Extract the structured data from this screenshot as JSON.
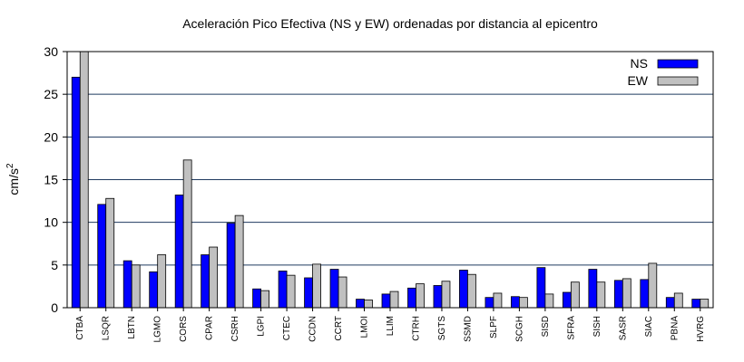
{
  "chart_data": {
    "type": "bar",
    "title": "Aceleración Pico Efectiva (NS y EW) ordenadas por distancia al epicentro",
    "xlabel": "",
    "ylabel": "cm/s",
    "ylabel_superscript": "2",
    "ylim": [
      0,
      30
    ],
    "yticks": [
      "0",
      "5",
      "10",
      "15",
      "20",
      "25",
      "30"
    ],
    "grid": "horizontal",
    "legend_position": "top-right",
    "categories": [
      "CTBA",
      "LSQR",
      "LBTN",
      "LGMO",
      "CORS",
      "CPAR",
      "CSRH",
      "LGPI",
      "CTEC",
      "CCDN",
      "CCRT",
      "LMOI",
      "LLIM",
      "CTRH",
      "SGTS",
      "SSMD",
      "SLPF",
      "SCGH",
      "SISD",
      "SFRA",
      "SISH",
      "SASR",
      "SIAC",
      "PBNA",
      "HVRG"
    ],
    "series": [
      {
        "name": "NS",
        "color": "#0000ff",
        "values": [
          27.0,
          12.1,
          5.5,
          4.2,
          13.2,
          6.2,
          9.9,
          2.2,
          4.3,
          3.5,
          4.5,
          1.0,
          1.6,
          2.3,
          2.6,
          4.4,
          1.2,
          1.3,
          4.7,
          1.8,
          4.5,
          3.2,
          3.3,
          1.2,
          1.0
        ]
      },
      {
        "name": "EW",
        "color": "#c0c0c0",
        "values": [
          30.0,
          12.8,
          5.0,
          6.2,
          17.3,
          7.1,
          10.8,
          2.0,
          3.8,
          5.1,
          3.6,
          0.9,
          1.9,
          2.8,
          3.1,
          3.9,
          1.7,
          1.2,
          1.6,
          3.0,
          3.0,
          3.4,
          5.2,
          1.7,
          1.0
        ]
      }
    ]
  }
}
